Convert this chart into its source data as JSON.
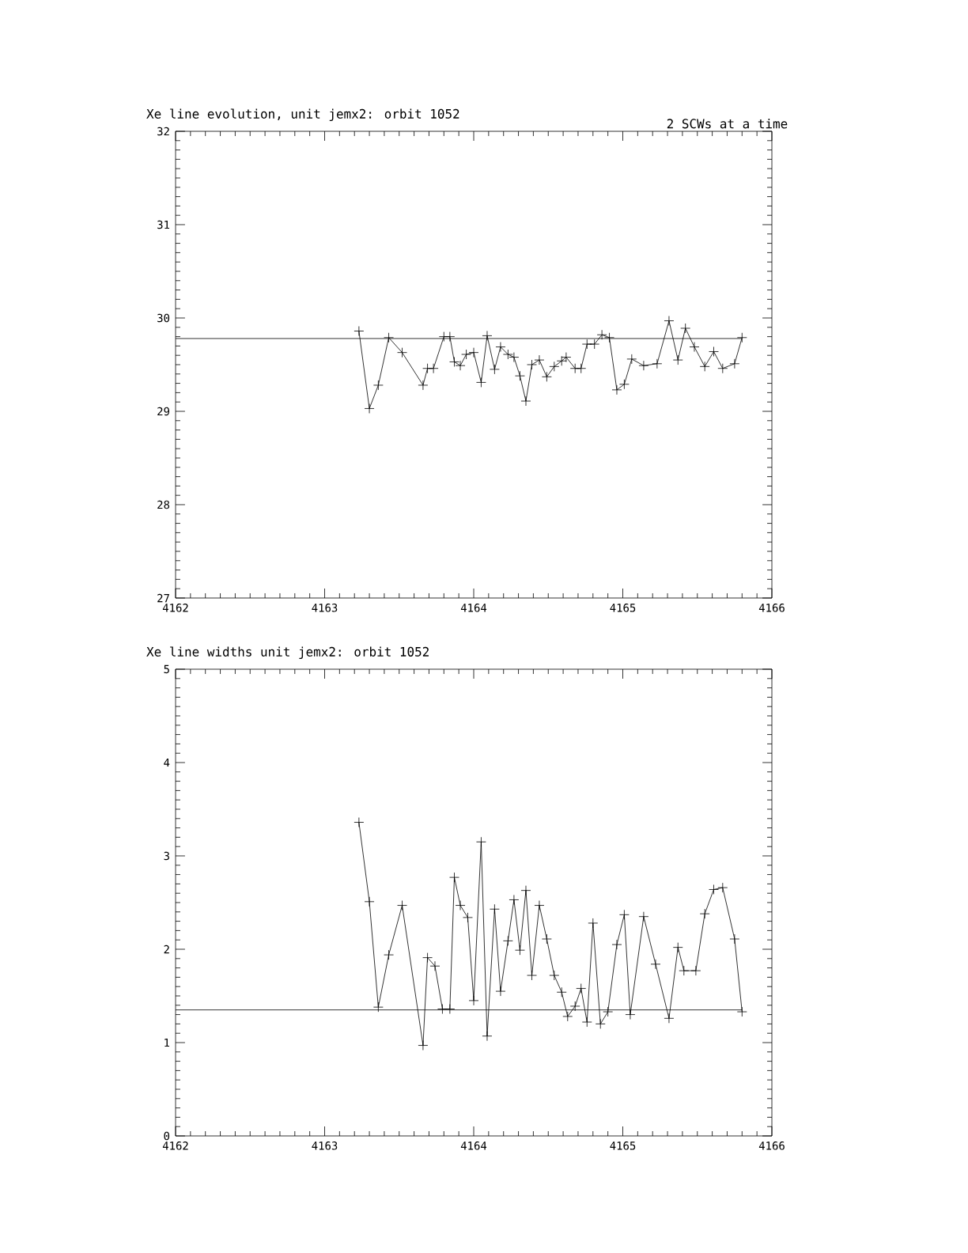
{
  "chart_data": [
    {
      "type": "line",
      "title": "Xe line evolution, unit jemx2: orbit 1052",
      "annotations": [
        "2 SCWs at a time"
      ],
      "xlim": [
        4162,
        4166
      ],
      "xticks": [
        4162,
        4163,
        4164,
        4165,
        4166
      ],
      "ylim": [
        27,
        32
      ],
      "yticks": [
        27,
        28,
        29,
        30,
        31,
        32
      ],
      "series": [
        {
          "color": "#000000",
          "marker": "cross",
          "x": [
            4163.23,
            4163.3,
            4163.36,
            4163.43,
            4163.52,
            4163.66,
            4163.69,
            4163.73,
            4163.8,
            4163.84,
            4163.87,
            4163.91,
            4163.95,
            4164.0,
            4164.05,
            4164.09,
            4164.14,
            4164.18,
            4164.23,
            4164.27,
            4164.31,
            4164.35,
            4164.39,
            4164.44,
            4164.49,
            4164.54,
            4164.59,
            4164.62,
            4164.68,
            4164.72,
            4164.76,
            4164.81,
            4164.86,
            4164.91,
            4164.96,
            4165.01,
            4165.06,
            4165.14,
            4165.23,
            4165.31,
            4165.37,
            4165.42,
            4165.48,
            4165.55,
            4165.61,
            4165.67,
            4165.75,
            4165.8
          ],
          "values": [
            29.86,
            29.03,
            29.28,
            29.79,
            29.63,
            29.28,
            29.46,
            29.46,
            29.8,
            29.8,
            29.53,
            29.49,
            29.61,
            29.63,
            29.31,
            29.81,
            29.45,
            29.69,
            29.61,
            29.58,
            29.38,
            29.11,
            29.5,
            29.55,
            29.37,
            29.48,
            29.54,
            29.58,
            29.46,
            29.46,
            29.72,
            29.72,
            29.82,
            29.79,
            29.23,
            29.29,
            29.56,
            29.49,
            29.51,
            29.97,
            29.55,
            29.89,
            29.69,
            29.48,
            29.64,
            29.46,
            29.51,
            29.79
          ]
        },
        {
          "color": "#000000",
          "marker": "none",
          "x": [
            4162,
            4165.8
          ],
          "values": [
            29.78,
            29.78
          ]
        }
      ]
    },
    {
      "type": "line",
      "title": "Xe line widths unit jemx2: orbit 1052",
      "xlim": [
        4162,
        4166
      ],
      "xticks": [
        4162,
        4163,
        4164,
        4165,
        4166
      ],
      "ylim": [
        0,
        5
      ],
      "yticks": [
        0,
        1,
        2,
        3,
        4,
        5
      ],
      "series": [
        {
          "color": "#000000",
          "marker": "cross",
          "x": [
            4163.23,
            4163.3,
            4163.36,
            4163.43,
            4163.52,
            4163.66,
            4163.69,
            4163.74,
            4163.79,
            4163.84,
            4163.87,
            4163.91,
            4163.96,
            4164.0,
            4164.05,
            4164.09,
            4164.14,
            4164.18,
            4164.23,
            4164.27,
            4164.31,
            4164.35,
            4164.39,
            4164.44,
            4164.49,
            4164.54,
            4164.59,
            4164.63,
            4164.68,
            4164.72,
            4164.76,
            4164.8,
            4164.85,
            4164.9,
            4164.96,
            4165.01,
            4165.05,
            4165.14,
            4165.22,
            4165.31,
            4165.37,
            4165.41,
            4165.49,
            4165.55,
            4165.61,
            4165.67,
            4165.75,
            4165.8
          ],
          "values": [
            3.36,
            2.51,
            1.38,
            1.94,
            2.47,
            0.97,
            1.91,
            1.82,
            1.36,
            1.36,
            2.77,
            2.47,
            2.34,
            1.45,
            3.15,
            1.07,
            2.43,
            1.55,
            2.09,
            2.53,
            1.99,
            2.63,
            1.72,
            2.47,
            2.11,
            1.72,
            1.54,
            1.28,
            1.39,
            1.58,
            1.22,
            2.28,
            1.2,
            1.33,
            2.05,
            2.37,
            1.3,
            2.35,
            1.84,
            1.26,
            2.02,
            1.77,
            1.77,
            2.38,
            2.64,
            2.66,
            2.11,
            1.33
          ]
        },
        {
          "color": "#000000",
          "marker": "none",
          "x": [
            4162,
            4165.8
          ],
          "values": [
            1.35,
            1.35
          ]
        }
      ]
    }
  ]
}
